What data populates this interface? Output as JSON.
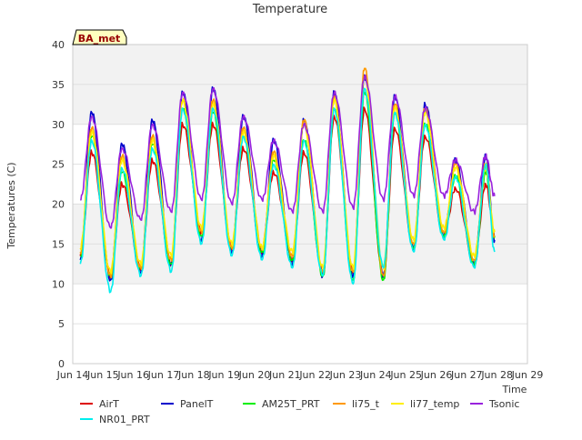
{
  "chart_data": {
    "type": "line",
    "title": "Temperature",
    "xlabel": "Time",
    "ylabel": "Temperatures (C)",
    "badge": "BA_met",
    "ylim": [
      0,
      40
    ],
    "yticks": [
      0,
      5,
      10,
      15,
      20,
      25,
      30,
      35,
      40
    ],
    "xlim": [
      "2024-06-14",
      "2024-06-29"
    ],
    "xticks": [
      "Jun 14",
      "Jun 15",
      "Jun 16",
      "Jun 17",
      "Jun 18",
      "Jun 19",
      "Jun 20",
      "Jun 21",
      "Jun 22",
      "Jun 23",
      "Jun 24",
      "Jun 25",
      "Jun 26",
      "Jun 27",
      "Jun 28",
      "Jun 29"
    ],
    "grid": true,
    "shaded_bands": [
      [
        10,
        20
      ],
      [
        30,
        40
      ]
    ],
    "legend": "bottom",
    "daily_extremes": {
      "x": [
        "2024-06-14 06:00",
        "2024-06-14 15:00",
        "2024-06-15 06:00",
        "2024-06-15 15:00",
        "2024-06-16 06:00",
        "2024-06-16 15:00",
        "2024-06-17 06:00",
        "2024-06-17 15:00",
        "2024-06-18 06:00",
        "2024-06-18 15:00",
        "2024-06-19 06:00",
        "2024-06-19 15:00",
        "2024-06-20 06:00",
        "2024-06-20 15:00",
        "2024-06-21 06:00",
        "2024-06-21 15:00",
        "2024-06-22 06:00",
        "2024-06-22 15:00",
        "2024-06-23 06:00",
        "2024-06-23 15:00",
        "2024-06-24 06:00",
        "2024-06-24 15:00",
        "2024-06-25 06:00",
        "2024-06-25 15:00",
        "2024-06-26 06:00",
        "2024-06-26 15:00",
        "2024-06-27 06:00",
        "2024-06-27 15:00",
        "2024-06-27 22:00"
      ]
    },
    "series": [
      {
        "name": "AirT",
        "color": "#dd0000",
        "values": [
          13.5,
          26.5,
          11.0,
          22.5,
          12.0,
          25.5,
          12.5,
          30.0,
          16.5,
          30.0,
          14.5,
          27.0,
          14.0,
          24.0,
          13.0,
          26.5,
          11.5,
          31.0,
          11.5,
          32.0,
          11.0,
          29.5,
          14.5,
          28.5,
          16.0,
          22.0,
          12.5,
          22.5,
          16.0
        ]
      },
      {
        "name": "PanelT",
        "color": "#0000cc",
        "values": [
          13.0,
          31.5,
          10.5,
          27.5,
          11.5,
          30.5,
          12.5,
          34.0,
          15.5,
          34.5,
          14.0,
          31.0,
          13.5,
          28.0,
          12.5,
          30.5,
          11.0,
          34.0,
          11.0,
          36.0,
          11.0,
          33.5,
          14.5,
          32.5,
          16.0,
          25.5,
          12.5,
          26.0,
          15.5
        ]
      },
      {
        "name": "AM25T_PRT",
        "color": "#00ee00",
        "values": [
          13.5,
          28.5,
          11.0,
          24.0,
          12.0,
          27.5,
          12.5,
          32.0,
          16.0,
          31.5,
          14.5,
          28.5,
          14.0,
          25.5,
          13.0,
          28.0,
          11.0,
          32.0,
          10.5,
          34.0,
          10.5,
          31.5,
          14.5,
          30.0,
          16.0,
          23.5,
          12.5,
          24.0,
          16.0
        ]
      },
      {
        "name": "li75_t",
        "color": "#ff9900",
        "values": [
          14.0,
          29.5,
          11.0,
          26.0,
          12.0,
          28.5,
          13.0,
          33.0,
          16.5,
          33.0,
          14.5,
          29.5,
          14.5,
          26.5,
          13.5,
          30.5,
          11.5,
          33.5,
          11.5,
          37.0,
          11.0,
          32.5,
          15.0,
          32.0,
          16.5,
          25.0,
          13.0,
          25.0,
          16.0
        ]
      },
      {
        "name": "li77_temp",
        "color": "#ffee00",
        "values": [
          14.5,
          29.0,
          11.5,
          25.5,
          12.5,
          28.0,
          13.5,
          33.0,
          17.0,
          32.5,
          15.0,
          29.0,
          14.5,
          26.0,
          14.0,
          30.0,
          12.0,
          33.0,
          12.0,
          36.0,
          12.0,
          32.0,
          15.5,
          31.5,
          17.0,
          24.5,
          13.5,
          24.5,
          16.5
        ]
      },
      {
        "name": "Tsonic",
        "color": "#9922dd",
        "values": [
          20.5,
          31.0,
          17.0,
          27.0,
          18.0,
          30.0,
          19.0,
          34.0,
          20.5,
          34.5,
          20.0,
          31.0,
          20.5,
          28.0,
          19.0,
          30.0,
          19.0,
          34.0,
          19.5,
          36.0,
          20.5,
          33.5,
          21.0,
          32.0,
          21.0,
          25.5,
          19.0,
          26.0,
          21.0
        ]
      },
      {
        "name": "NR01_PRT",
        "color": "#00eeee",
        "values": [
          12.5,
          28.0,
          9.0,
          24.5,
          11.0,
          27.0,
          11.5,
          32.0,
          15.0,
          32.0,
          13.5,
          28.5,
          13.0,
          25.0,
          12.0,
          28.0,
          11.0,
          32.0,
          10.0,
          34.5,
          12.0,
          31.5,
          14.0,
          30.0,
          15.5,
          23.5,
          12.0,
          25.0,
          14.0
        ]
      }
    ]
  }
}
